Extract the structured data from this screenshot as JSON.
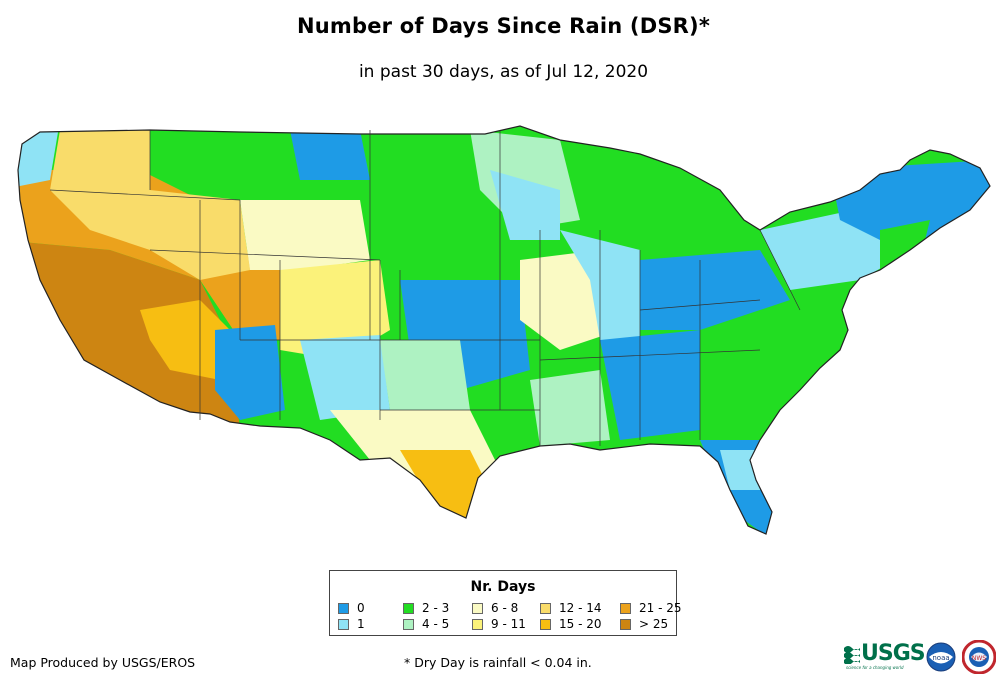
{
  "title": "Number of Days Since Rain (DSR)*",
  "subtitle": "in past 30 days, as of Jul 12, 2020",
  "legend": {
    "title": "Nr. Days",
    "items": [
      {
        "label": "0",
        "color": "#1e9be6"
      },
      {
        "label": "1",
        "color": "#8fe3f5"
      },
      {
        "label": "2 - 3",
        "color": "#22dd22"
      },
      {
        "label": "4 - 5",
        "color": "#aef2c2"
      },
      {
        "label": "6 - 8",
        "color": "#fafac4"
      },
      {
        "label": "9 - 11",
        "color": "#fbf27a"
      },
      {
        "label": "12 - 14",
        "color": "#f9dc6a"
      },
      {
        "label": "15 - 20",
        "color": "#f7be12"
      },
      {
        "label": "21 - 25",
        "color": "#eba21c"
      },
      {
        "label": "> 25",
        "color": "#cd8512"
      }
    ]
  },
  "credit": "Map Produced by USGS/EROS",
  "footnote": "* Dry Day is rainfall < 0.04 in.",
  "logos": {
    "usgs": "USGS",
    "usgs_tagline": "science for a changing world",
    "noaa": "noaa",
    "nws": "NWS"
  }
}
